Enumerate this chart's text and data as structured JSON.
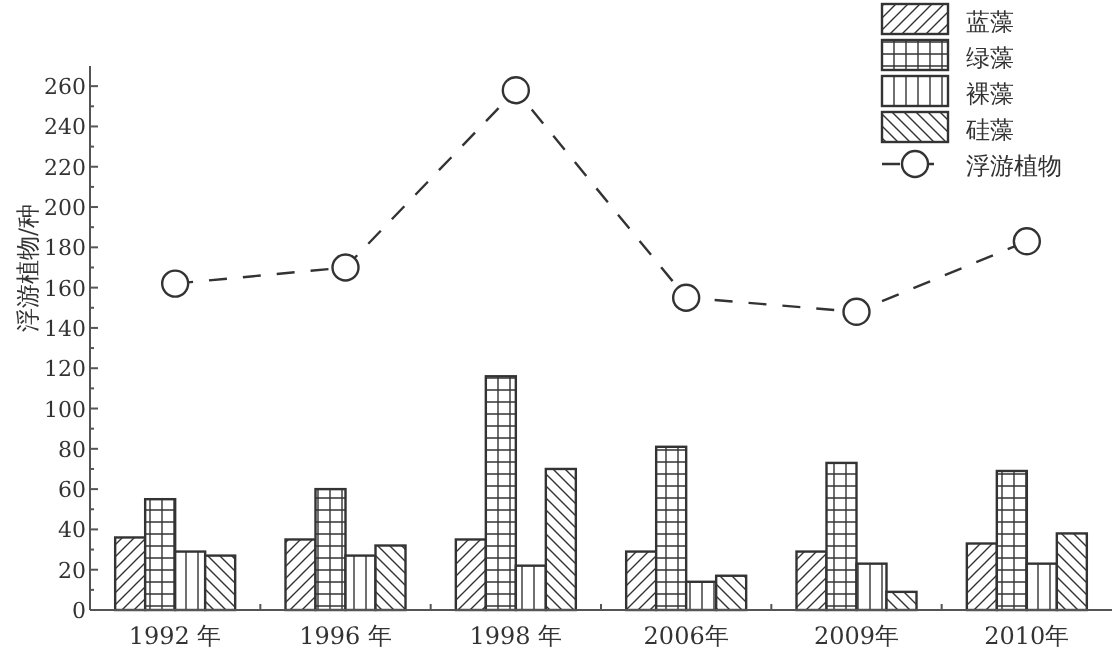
{
  "chart_data": {
    "type": "bar",
    "ylabel": "浮游植物/种",
    "categories": [
      "1992 年",
      "1996 年",
      "1998 年",
      "2006年",
      "2009年",
      "2010年"
    ],
    "series": [
      {
        "name": "蓝藻",
        "color": "#333333",
        "values": [
          36,
          35,
          35,
          29,
          29,
          33
        ]
      },
      {
        "name": "绿藻",
        "color": "#333333",
        "values": [
          55,
          60,
          116,
          81,
          73,
          69
        ]
      },
      {
        "name": "裸藻",
        "color": "#333333",
        "values": [
          29,
          27,
          22,
          14,
          23,
          23
        ]
      },
      {
        "name": "硅藻",
        "color": "#333333",
        "values": [
          27,
          32,
          70,
          17,
          9,
          38
        ]
      },
      {
        "name": "浮游植物",
        "type": "line",
        "color": "#333333",
        "line_style": "dashed",
        "marker": "circle",
        "values": [
          162,
          170,
          258,
          155,
          148,
          183
        ]
      }
    ],
    "ylim": [
      0,
      270
    ],
    "yticks": [
      0,
      20,
      40,
      60,
      80,
      100,
      120,
      140,
      160,
      180,
      200,
      220,
      240,
      260
    ],
    "grid": false,
    "legend": "top right"
  }
}
